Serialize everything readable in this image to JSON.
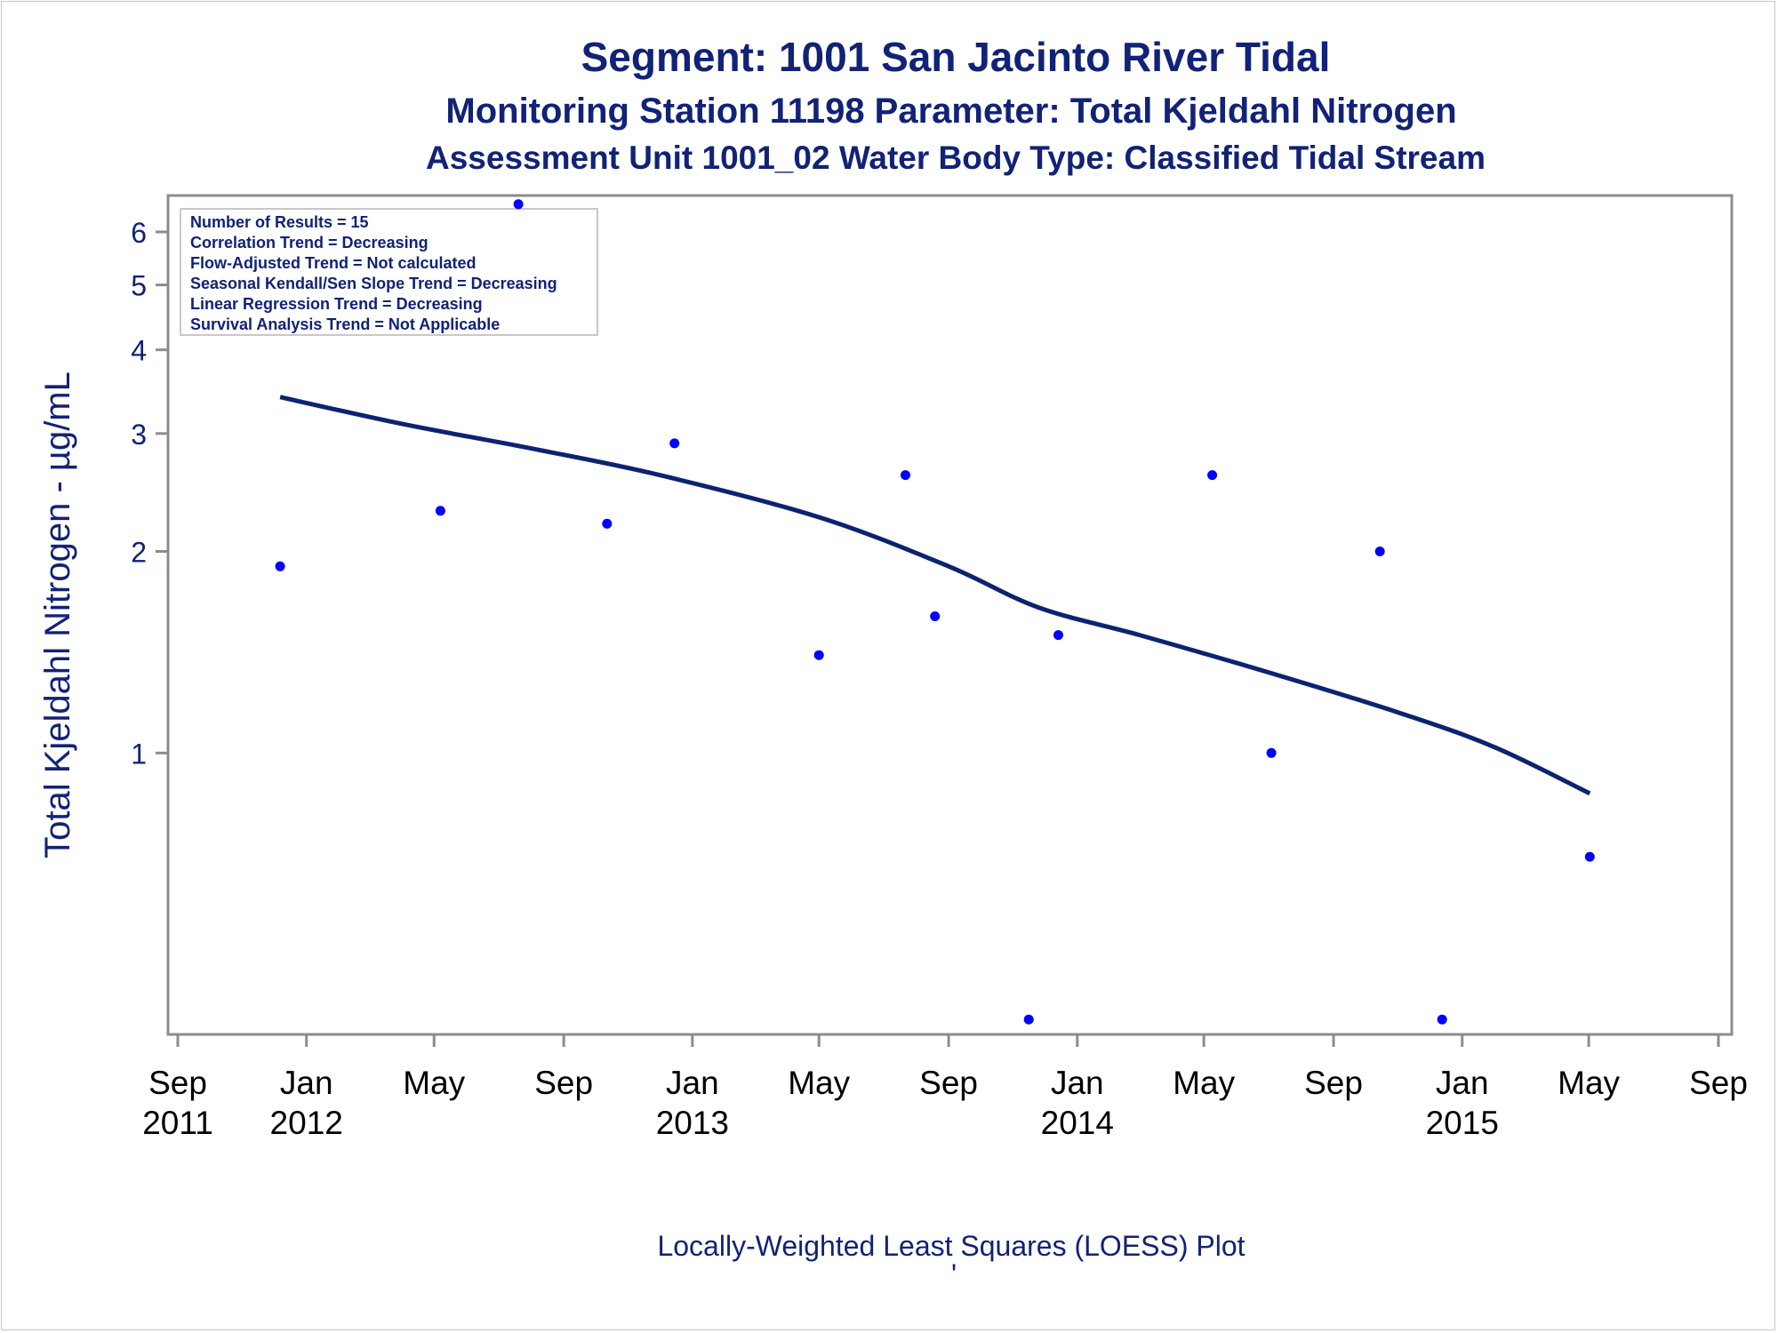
{
  "titles": {
    "line1": "Segment: 1001  San Jacinto River Tidal",
    "line2": "Monitoring Station 11198 Parameter: Total Kjeldahl Nitrogen",
    "line3": "Assessment Unit 1001_02   Water Body Type: Classified Tidal Stream"
  },
  "footnote": "Locally-Weighted Least Squares (LOESS) Plot",
  "footnote_mark": "'",
  "stats_box": [
    "Number of Results = 15",
    "Correlation Trend = Decreasing",
    "Flow-Adjusted Trend = Not calculated",
    "Seasonal Kendall/Sen Slope Trend = Decreasing",
    "Linear Regression Trend = Decreasing",
    "Survival Analysis Trend = Not Applicable"
  ],
  "colors": {
    "text": "#112277",
    "points": "#0000ff",
    "loess_line": "#0c2371",
    "axis": "#8c8c8c"
  },
  "chart_data": {
    "type": "scatter",
    "ylabel": "Total Kjeldahl Nitrogen -  µg/mL",
    "xlabel": "",
    "y_scale": "log",
    "ylim": [
      0.38,
      6.8
    ],
    "xlim": [
      "2011-09-01",
      "2015-09-01"
    ],
    "y_ticks": [
      1,
      2,
      3,
      4,
      5,
      6
    ],
    "x_ticks": [
      {
        "date": "2011-09-01",
        "month": "Sep",
        "year": "2011"
      },
      {
        "date": "2012-01-01",
        "month": "Jan",
        "year": "2012"
      },
      {
        "date": "2012-05-01",
        "month": "May",
        "year": ""
      },
      {
        "date": "2012-09-01",
        "month": "Sep",
        "year": ""
      },
      {
        "date": "2013-01-01",
        "month": "Jan",
        "year": "2013"
      },
      {
        "date": "2013-05-01",
        "month": "May",
        "year": ""
      },
      {
        "date": "2013-09-01",
        "month": "Sep",
        "year": ""
      },
      {
        "date": "2014-01-01",
        "month": "Jan",
        "year": "2014"
      },
      {
        "date": "2014-05-01",
        "month": "May",
        "year": ""
      },
      {
        "date": "2014-09-01",
        "month": "Sep",
        "year": ""
      },
      {
        "date": "2015-01-01",
        "month": "Jan",
        "year": "2015"
      },
      {
        "date": "2015-05-01",
        "month": "May",
        "year": ""
      },
      {
        "date": "2015-09-01",
        "month": "Sep",
        "year": ""
      }
    ],
    "series": [
      {
        "kind": "points",
        "values": [
          {
            "x": "2011-12-07",
            "y": 1.9
          },
          {
            "x": "2012-05-07",
            "y": 2.3
          },
          {
            "x": "2012-07-20",
            "y": 6.6
          },
          {
            "x": "2012-10-12",
            "y": 2.2
          },
          {
            "x": "2012-12-15",
            "y": 2.9
          },
          {
            "x": "2013-05-01",
            "y": 1.4
          },
          {
            "x": "2013-07-22",
            "y": 2.6
          },
          {
            "x": "2013-08-19",
            "y": 1.6
          },
          {
            "x": "2013-11-16",
            "y": 0.4
          },
          {
            "x": "2013-12-14",
            "y": 1.5
          },
          {
            "x": "2014-05-09",
            "y": 2.6
          },
          {
            "x": "2014-07-04",
            "y": 1.0
          },
          {
            "x": "2014-10-15",
            "y": 2.0
          },
          {
            "x": "2014-12-13",
            "y": 0.4
          },
          {
            "x": "2015-05-02",
            "y": 0.7
          }
        ]
      },
      {
        "kind": "loess",
        "values": [
          {
            "x": "2011-12-07",
            "y": 3.4
          },
          {
            "x": "2012-04-01",
            "y": 3.1
          },
          {
            "x": "2012-08-01",
            "y": 2.85
          },
          {
            "x": "2012-12-01",
            "y": 2.6
          },
          {
            "x": "2013-05-01",
            "y": 2.25
          },
          {
            "x": "2013-09-01",
            "y": 1.9
          },
          {
            "x": "2013-11-25",
            "y": 1.65
          },
          {
            "x": "2014-03-01",
            "y": 1.5
          },
          {
            "x": "2014-07-01",
            "y": 1.32
          },
          {
            "x": "2014-11-01",
            "y": 1.15
          },
          {
            "x": "2015-02-01",
            "y": 1.02
          },
          {
            "x": "2015-05-02",
            "y": 0.87
          }
        ]
      }
    ]
  }
}
